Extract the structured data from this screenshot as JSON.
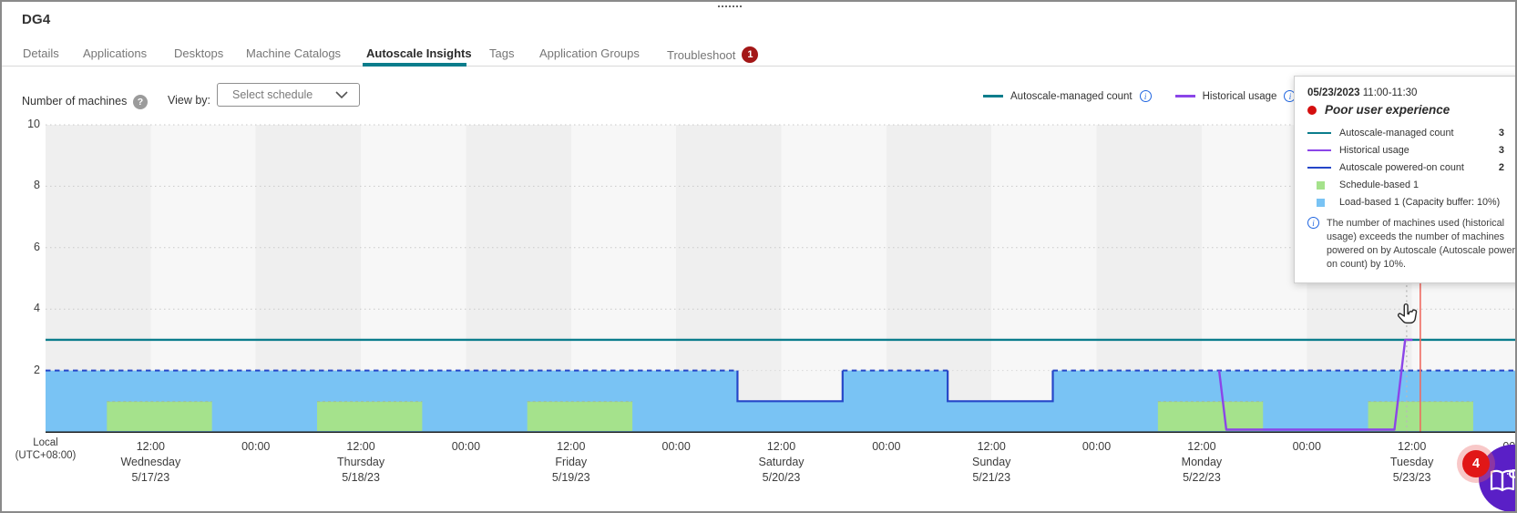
{
  "window": {
    "title": "DG4"
  },
  "tabs": {
    "items": [
      {
        "label": "Details",
        "active": false
      },
      {
        "label": "Applications",
        "active": false
      },
      {
        "label": "Desktops",
        "active": false
      },
      {
        "label": "Machine Catalogs",
        "active": false
      },
      {
        "label": "Autoscale Insights",
        "active": true
      },
      {
        "label": "Tags",
        "active": false
      },
      {
        "label": "Application Groups",
        "active": false
      },
      {
        "label": "Troubleshoot",
        "active": false,
        "badge": "1"
      }
    ]
  },
  "controls": {
    "axis_title": "Number of machines",
    "help_icon": "?",
    "view_by_label": "View by:",
    "schedule_dropdown_value": "Select schedule"
  },
  "legend": {
    "items": [
      {
        "label": "Autoscale-managed count",
        "color": "#0b7d8c",
        "info": true
      },
      {
        "label": "Historical usage",
        "color": "#8b45e8",
        "info": true
      }
    ]
  },
  "chart_data": {
    "type": "area",
    "title": "Number of machines",
    "ylabel": "Number of machines",
    "ylim": [
      0,
      10
    ],
    "y_ticks": [
      2,
      4,
      6,
      8,
      10
    ],
    "grid": true,
    "timezone_label": [
      "Local",
      "(UTC+08:00)"
    ],
    "tick_time_noon": "12:00",
    "tick_time_midnight": "00:00",
    "days": [
      {
        "name": "Wednesday",
        "date": "5/17/23"
      },
      {
        "name": "Thursday",
        "date": "5/18/23"
      },
      {
        "name": "Friday",
        "date": "5/19/23"
      },
      {
        "name": "Saturday",
        "date": "5/20/23"
      },
      {
        "name": "Sunday",
        "date": "5/21/23"
      },
      {
        "name": "Monday",
        "date": "5/22/23"
      },
      {
        "name": "Tuesday",
        "date": "5/23/23"
      }
    ],
    "series": [
      {
        "name": "Autoscale-managed count",
        "type": "hline",
        "color": "#0b7d8c",
        "value": 3
      },
      {
        "name": "Autoscale powered-on count",
        "type": "step-area",
        "line_color": "#2546c8",
        "fill_color": "#79c3f4",
        "points_days": [
          [
            0,
            2
          ],
          [
            3.2917,
            2
          ],
          [
            3.2917,
            1
          ],
          [
            3.7917,
            1
          ],
          [
            3.7917,
            2
          ],
          [
            4.2917,
            2
          ],
          [
            4.2917,
            1
          ],
          [
            4.7917,
            1
          ],
          [
            4.7917,
            2
          ],
          [
            7,
            2
          ]
        ],
        "dip_ranges_days": [
          [
            3.2917,
            3.7917
          ],
          [
            4.2917,
            4.7917
          ]
        ]
      },
      {
        "name": "Schedule-based",
        "type": "blocks",
        "color": "#a5e28c",
        "height": 1,
        "blocks_days": [
          [
            0.2917,
            0.7917
          ],
          [
            1.2917,
            1.7917
          ],
          [
            2.2917,
            2.7917
          ],
          [
            5.2917,
            5.7917
          ],
          [
            6.2917,
            6.7917
          ]
        ]
      },
      {
        "name": "Historical usage",
        "type": "line",
        "color": "#8b45e8",
        "points_days": [
          [
            5.583,
            2
          ],
          [
            5.617,
            0
          ],
          [
            6.417,
            0
          ],
          [
            6.468,
            3
          ],
          [
            6.503,
            3
          ]
        ]
      }
    ],
    "hover": {
      "crosshair_day": 6.475,
      "current_time_day": 6.54,
      "current_time_color": "#ef6a60",
      "crosshair_color": "#b9b9b9"
    },
    "band_colors": [
      "#efefef",
      "#f7f7f7"
    ]
  },
  "tooltip": {
    "date": "05/23/2023",
    "time_range": "11:00-11:30",
    "status": {
      "label": "Poor user experience",
      "color": "#d40f0f"
    },
    "rows": [
      {
        "swatch": "line",
        "color": "#0b7d8c",
        "label": "Autoscale-managed count",
        "value": "3"
      },
      {
        "swatch": "line",
        "color": "#8b45e8",
        "label": "Historical usage",
        "value": "3"
      },
      {
        "swatch": "line",
        "color": "#2546c8",
        "label": "Autoscale powered-on count",
        "value": "2"
      },
      {
        "swatch": "square",
        "color": "#a5e28c",
        "label": "Schedule-based 1",
        "value": ""
      },
      {
        "swatch": "square",
        "color": "#79c3f4",
        "label": "Load-based 1 (Capacity buffer: 10%)",
        "value": ""
      }
    ],
    "info_lines": [
      "The number of machines used (historical",
      "usage) exceeds the number of machines",
      "powered on by Autoscale (Autoscale powered",
      "on count) by 10%."
    ]
  },
  "fab": {
    "badge": "4",
    "icon": "guide-book-bulb",
    "color": "#5a1fc6"
  }
}
